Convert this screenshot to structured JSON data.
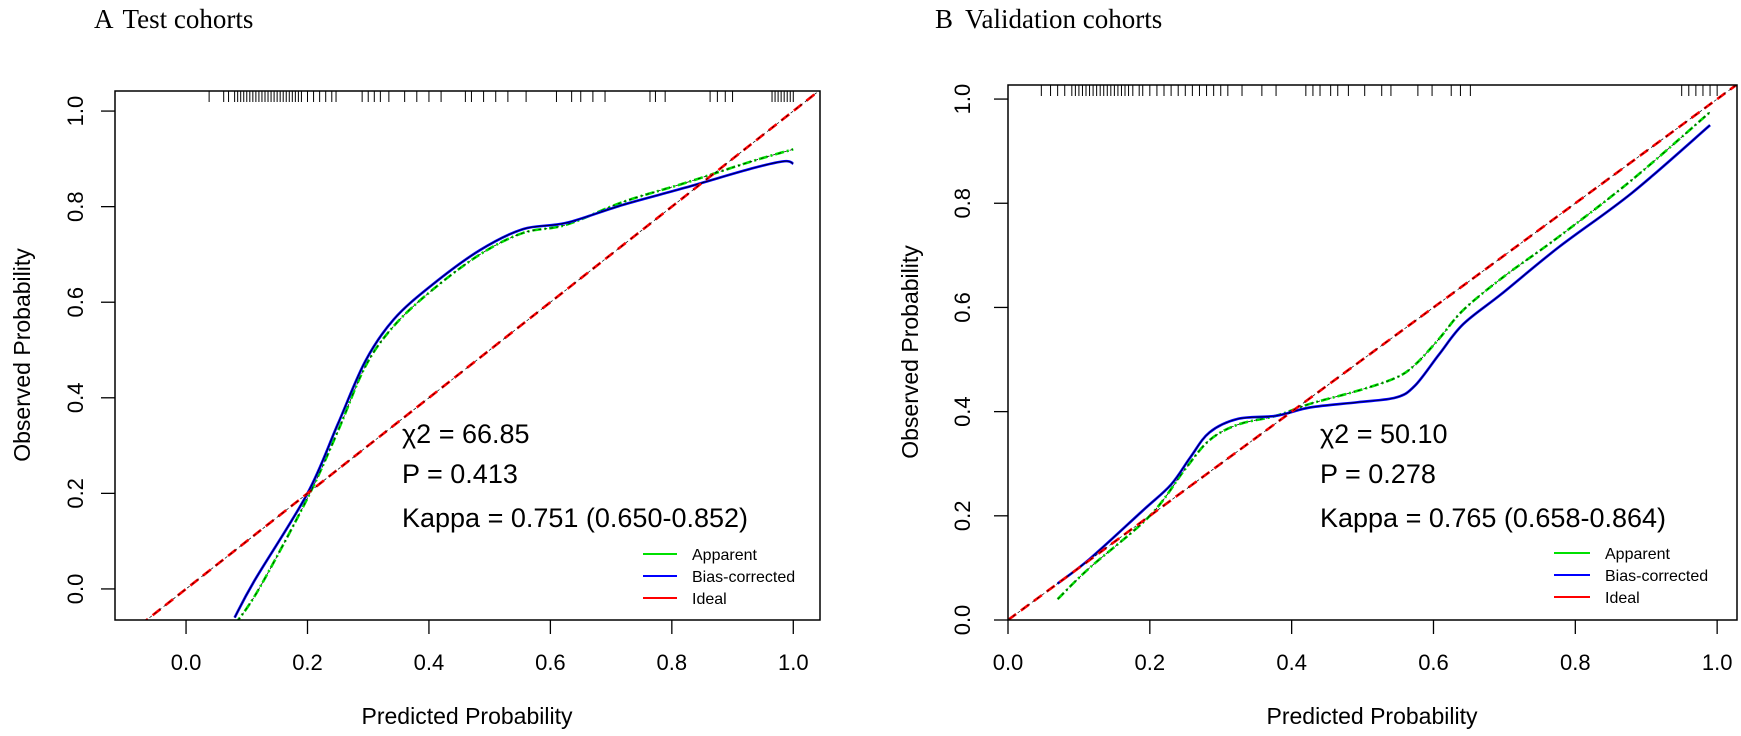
{
  "chart_data": [
    {
      "type": "line",
      "panel_label": "A",
      "title": "Test cohorts",
      "xlabel": "Predicted Probability",
      "ylabel": "Observed Probability",
      "xlim": [
        -0.117,
        1.044
      ],
      "ylim": [
        -0.065,
        1.042
      ],
      "xticks": [
        "0.0",
        "0.2",
        "0.4",
        "0.6",
        "0.8",
        "1.0"
      ],
      "yticks": [
        "0.0",
        "0.2",
        "0.4",
        "0.6",
        "0.8",
        "1.0"
      ],
      "grid": false,
      "annotations": [
        "χ2 = 66.85",
        "P = 0.413",
        "Kappa = 0.751 (0.650-0.852)"
      ],
      "legend": {
        "placement": "bottom-right",
        "entries": [
          "Apparent",
          "Bias-corrected",
          "Ideal"
        ]
      },
      "series": [
        {
          "name": "Apparent",
          "color": "#00e000",
          "x": [
            0.08,
            0.12,
            0.2,
            0.25,
            0.295,
            0.342,
            0.405,
            0.484,
            0.555,
            0.626,
            0.72,
            0.823,
            0.932,
            1.0
          ],
          "y": [
            -0.075,
            0.0,
            0.19,
            0.33,
            0.465,
            0.55,
            0.625,
            0.7,
            0.745,
            0.762,
            0.81,
            0.85,
            0.895,
            0.92
          ]
        },
        {
          "name": "Bias-corrected",
          "color": "#0000ff",
          "x": [
            0.08,
            0.113,
            0.2,
            0.25,
            0.295,
            0.342,
            0.405,
            0.484,
            0.555,
            0.626,
            0.72,
            0.823,
            0.932,
            0.985,
            1.0
          ],
          "y": [
            -0.06,
            0.018,
            0.2,
            0.345,
            0.476,
            0.564,
            0.636,
            0.709,
            0.753,
            0.766,
            0.804,
            0.84,
            0.88,
            0.895,
            0.89
          ]
        },
        {
          "name": "Ideal",
          "color": "#ff0000",
          "x": [
            -0.2,
            1.1
          ],
          "y": [
            -0.2,
            1.1
          ]
        }
      ],
      "rug": [
        0.038,
        0.062,
        0.07,
        0.08,
        0.085,
        0.09,
        0.095,
        0.1,
        0.105,
        0.11,
        0.115,
        0.12,
        0.125,
        0.13,
        0.135,
        0.14,
        0.145,
        0.15,
        0.155,
        0.16,
        0.165,
        0.17,
        0.175,
        0.18,
        0.185,
        0.19,
        0.2,
        0.21,
        0.22,
        0.23,
        0.24,
        0.247,
        0.29,
        0.3,
        0.31,
        0.32,
        0.334,
        0.36,
        0.38,
        0.4,
        0.42,
        0.46,
        0.47,
        0.49,
        0.51,
        0.53,
        0.56,
        0.61,
        0.635,
        0.65,
        0.67,
        0.69,
        0.764,
        0.773,
        0.789,
        0.863,
        0.875,
        0.888,
        0.9,
        0.965,
        0.97,
        0.975,
        0.98,
        0.985,
        0.99,
        0.995,
        1.0
      ]
    },
    {
      "type": "line",
      "panel_label": "B",
      "title": "Validation cohorts",
      "xlabel": "Predicted Probability",
      "ylabel": "Observed Probability",
      "xlim": [
        0,
        1.028
      ],
      "ylim": [
        0,
        1.027
      ],
      "xticks": [
        "0.0",
        "0.2",
        "0.4",
        "0.6",
        "0.8",
        "1.0"
      ],
      "yticks": [
        "0.0",
        "0.2",
        "0.4",
        "0.6",
        "0.8",
        "1.0"
      ],
      "grid": false,
      "annotations": [
        "χ2 = 50.10",
        "P = 0.278",
        "Kappa = 0.765 (0.658-0.864)"
      ],
      "legend": {
        "placement": "bottom-right",
        "entries": [
          "Apparent",
          "Bias-corrected",
          "Ideal"
        ]
      },
      "series": [
        {
          "name": "Apparent",
          "color": "#00e000",
          "x": [
            0.07,
            0.115,
            0.2,
            0.25,
            0.284,
            0.324,
            0.378,
            0.426,
            0.493,
            0.547,
            0.574,
            0.608,
            0.642,
            0.7,
            0.776,
            0.88,
            0.99
          ],
          "y": [
            0.04,
            0.1,
            0.2,
            0.29,
            0.345,
            0.375,
            0.392,
            0.415,
            0.44,
            0.465,
            0.49,
            0.54,
            0.595,
            0.66,
            0.735,
            0.845,
            0.975
          ]
        },
        {
          "name": "Bias-corrected",
          "color": "#0000ff",
          "x": [
            0.07,
            0.115,
            0.19,
            0.23,
            0.257,
            0.284,
            0.324,
            0.378,
            0.426,
            0.493,
            0.547,
            0.574,
            0.608,
            0.642,
            0.696,
            0.776,
            0.88,
            0.99
          ],
          "y": [
            0.07,
            0.117,
            0.21,
            0.26,
            0.312,
            0.36,
            0.386,
            0.392,
            0.408,
            0.418,
            0.427,
            0.45,
            0.51,
            0.568,
            0.626,
            0.715,
            0.82,
            0.95
          ]
        },
        {
          "name": "Ideal",
          "color": "#ff0000",
          "x": [
            0,
            1.1
          ],
          "y": [
            0,
            1.1
          ]
        }
      ],
      "rug": [
        0.047,
        0.06,
        0.07,
        0.08,
        0.09,
        0.095,
        0.1,
        0.105,
        0.11,
        0.115,
        0.12,
        0.125,
        0.13,
        0.135,
        0.14,
        0.145,
        0.15,
        0.155,
        0.16,
        0.165,
        0.17,
        0.176,
        0.185,
        0.19,
        0.2,
        0.21,
        0.22,
        0.23,
        0.24,
        0.25,
        0.26,
        0.27,
        0.28,
        0.29,
        0.3,
        0.31,
        0.33,
        0.358,
        0.378,
        0.42,
        0.43,
        0.44,
        0.455,
        0.465,
        0.48,
        0.503,
        0.527,
        0.54,
        0.578,
        0.598,
        0.625,
        0.638,
        0.652,
        0.95,
        0.96,
        0.97,
        0.98,
        0.99,
        1.0
      ]
    }
  ]
}
